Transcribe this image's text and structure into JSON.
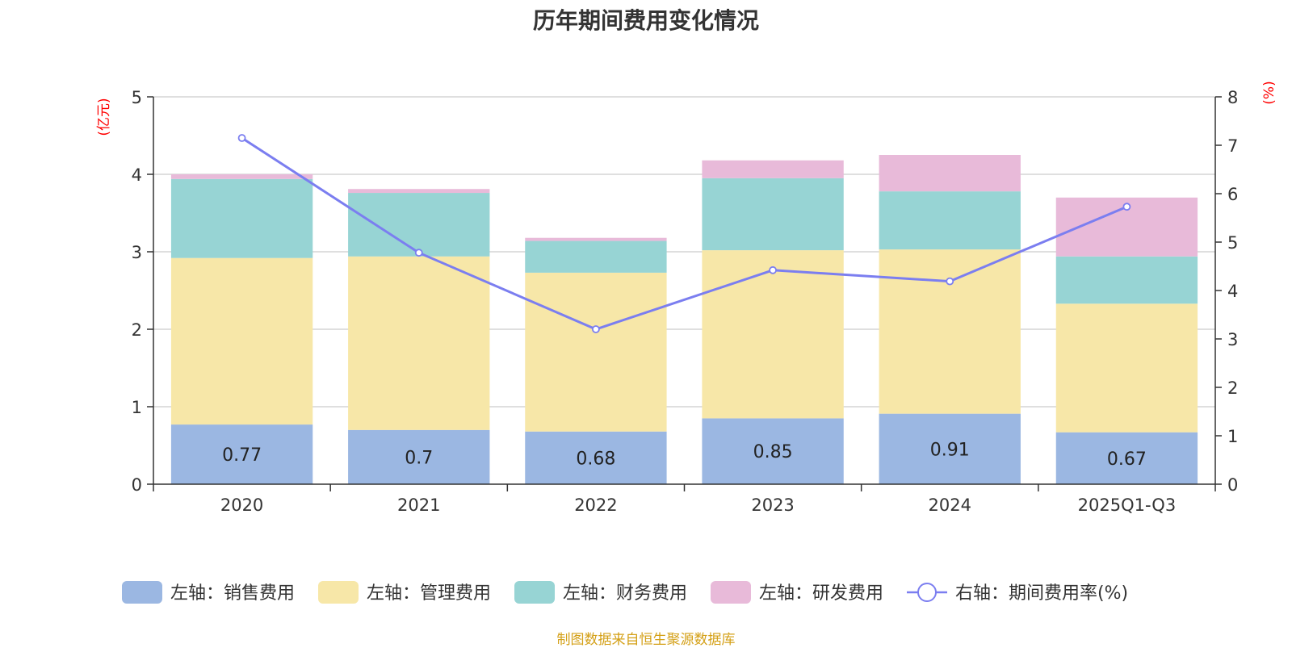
{
  "chart_data": {
    "type": "bar",
    "stacked": true,
    "title": "历年期间费用变化情况",
    "left_axis": {
      "unit": "(亿元)",
      "ylim": [
        0,
        5
      ],
      "ticks": [
        0,
        1,
        2,
        3,
        4,
        5
      ]
    },
    "right_axis": {
      "unit": "(%)",
      "ylim": [
        0,
        8
      ],
      "ticks": [
        0,
        1,
        2,
        3,
        4,
        5,
        6,
        7,
        8
      ]
    },
    "categories": [
      "2020",
      "2021",
      "2022",
      "2023",
      "2024",
      "2025Q1-Q3"
    ],
    "series": [
      {
        "name": "左轴：销售费用",
        "axis": "left",
        "color": "#9bb7e2",
        "values": [
          0.77,
          0.7,
          0.68,
          0.85,
          0.91,
          0.67
        ],
        "labels": [
          "0.77",
          "0.7",
          "0.68",
          "0.85",
          "0.91",
          "0.67"
        ]
      },
      {
        "name": "左轴：管理费用",
        "axis": "left",
        "color": "#f7e7a8",
        "values": [
          2.15,
          2.24,
          2.05,
          2.17,
          2.12,
          1.66
        ]
      },
      {
        "name": "左轴：财务费用",
        "axis": "left",
        "color": "#97d4d4",
        "values": [
          1.02,
          0.82,
          0.41,
          0.93,
          0.75,
          0.61
        ]
      },
      {
        "name": "左轴：研发费用",
        "axis": "left",
        "color": "#e8bad9",
        "values": [
          0.06,
          0.05,
          0.04,
          0.23,
          0.47,
          0.76
        ]
      },
      {
        "name": "右轴：期间费用率(%)",
        "axis": "right",
        "type": "line",
        "color": "#7b7ef0",
        "values": [
          7.15,
          4.78,
          3.2,
          4.42,
          4.19,
          5.73
        ]
      }
    ],
    "source": "制图数据来自恒生聚源数据库",
    "source_color": "#d4a017"
  }
}
